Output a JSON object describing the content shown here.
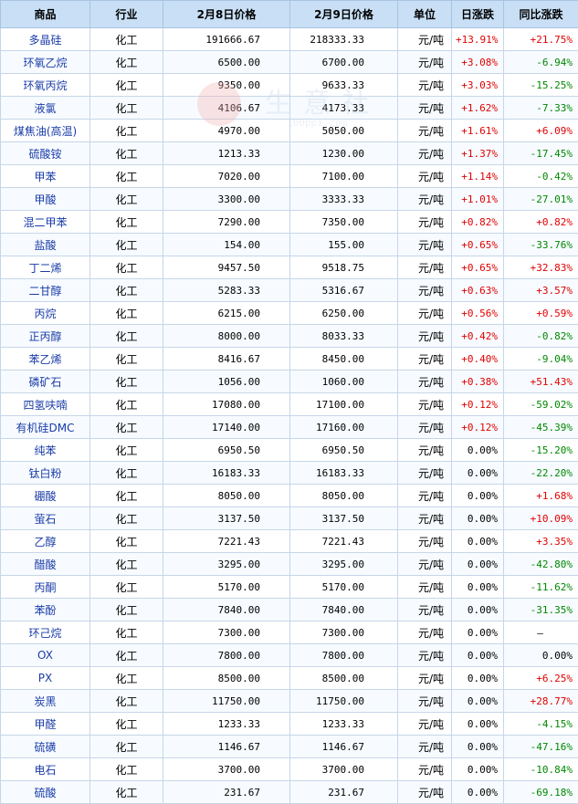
{
  "headers": [
    "商品",
    "行业",
    "2月8日价格",
    "2月9日价格",
    "单位",
    "日涨跌",
    "同比涨跌"
  ],
  "watermark": {
    "text": "生意社",
    "url": "100ppi.com"
  },
  "colors": {
    "up": "#e00000",
    "down": "#008800",
    "header_bg": "#c8dff5",
    "name": "#1a3ca8"
  },
  "rows": [
    {
      "name": "多晶硅",
      "industry": "化工",
      "price_feb8": "191666.67",
      "price_feb9": "218333.33",
      "unit": "元/吨",
      "daily": "+13.91%",
      "yoy": "+21.75%"
    },
    {
      "name": "环氧乙烷",
      "industry": "化工",
      "price_feb8": "6500.00",
      "price_feb9": "6700.00",
      "unit": "元/吨",
      "daily": "+3.08%",
      "yoy": "-6.94%"
    },
    {
      "name": "环氧丙烷",
      "industry": "化工",
      "price_feb8": "9350.00",
      "price_feb9": "9633.33",
      "unit": "元/吨",
      "daily": "+3.03%",
      "yoy": "-15.25%"
    },
    {
      "name": "液氯",
      "industry": "化工",
      "price_feb8": "4106.67",
      "price_feb9": "4173.33",
      "unit": "元/吨",
      "daily": "+1.62%",
      "yoy": "-7.33%"
    },
    {
      "name": "煤焦油(高温)",
      "industry": "化工",
      "price_feb8": "4970.00",
      "price_feb9": "5050.00",
      "unit": "元/吨",
      "daily": "+1.61%",
      "yoy": "+6.09%"
    },
    {
      "name": "硫酸铵",
      "industry": "化工",
      "price_feb8": "1213.33",
      "price_feb9": "1230.00",
      "unit": "元/吨",
      "daily": "+1.37%",
      "yoy": "-17.45%"
    },
    {
      "name": "甲苯",
      "industry": "化工",
      "price_feb8": "7020.00",
      "price_feb9": "7100.00",
      "unit": "元/吨",
      "daily": "+1.14%",
      "yoy": "-0.42%"
    },
    {
      "name": "甲酸",
      "industry": "化工",
      "price_feb8": "3300.00",
      "price_feb9": "3333.33",
      "unit": "元/吨",
      "daily": "+1.01%",
      "yoy": "-27.01%"
    },
    {
      "name": "混二甲苯",
      "industry": "化工",
      "price_feb8": "7290.00",
      "price_feb9": "7350.00",
      "unit": "元/吨",
      "daily": "+0.82%",
      "yoy": "+0.82%"
    },
    {
      "name": "盐酸",
      "industry": "化工",
      "price_feb8": "154.00",
      "price_feb9": "155.00",
      "unit": "元/吨",
      "daily": "+0.65%",
      "yoy": "-33.76%"
    },
    {
      "name": "丁二烯",
      "industry": "化工",
      "price_feb8": "9457.50",
      "price_feb9": "9518.75",
      "unit": "元/吨",
      "daily": "+0.65%",
      "yoy": "+32.83%"
    },
    {
      "name": "二甘醇",
      "industry": "化工",
      "price_feb8": "5283.33",
      "price_feb9": "5316.67",
      "unit": "元/吨",
      "daily": "+0.63%",
      "yoy": "+3.57%"
    },
    {
      "name": "丙烷",
      "industry": "化工",
      "price_feb8": "6215.00",
      "price_feb9": "6250.00",
      "unit": "元/吨",
      "daily": "+0.56%",
      "yoy": "+0.59%"
    },
    {
      "name": "正丙醇",
      "industry": "化工",
      "price_feb8": "8000.00",
      "price_feb9": "8033.33",
      "unit": "元/吨",
      "daily": "+0.42%",
      "yoy": "-0.82%"
    },
    {
      "name": "苯乙烯",
      "industry": "化工",
      "price_feb8": "8416.67",
      "price_feb9": "8450.00",
      "unit": "元/吨",
      "daily": "+0.40%",
      "yoy": "-9.04%"
    },
    {
      "name": "磷矿石",
      "industry": "化工",
      "price_feb8": "1056.00",
      "price_feb9": "1060.00",
      "unit": "元/吨",
      "daily": "+0.38%",
      "yoy": "+51.43%"
    },
    {
      "name": "四氢呋喃",
      "industry": "化工",
      "price_feb8": "17080.00",
      "price_feb9": "17100.00",
      "unit": "元/吨",
      "daily": "+0.12%",
      "yoy": "-59.02%"
    },
    {
      "name": "有机硅DMC",
      "industry": "化工",
      "price_feb8": "17140.00",
      "price_feb9": "17160.00",
      "unit": "元/吨",
      "daily": "+0.12%",
      "yoy": "-45.39%"
    },
    {
      "name": "纯苯",
      "industry": "化工",
      "price_feb8": "6950.50",
      "price_feb9": "6950.50",
      "unit": "元/吨",
      "daily": "0.00%",
      "yoy": "-15.20%"
    },
    {
      "name": "钛白粉",
      "industry": "化工",
      "price_feb8": "16183.33",
      "price_feb9": "16183.33",
      "unit": "元/吨",
      "daily": "0.00%",
      "yoy": "-22.20%"
    },
    {
      "name": "硼酸",
      "industry": "化工",
      "price_feb8": "8050.00",
      "price_feb9": "8050.00",
      "unit": "元/吨",
      "daily": "0.00%",
      "yoy": "+1.68%"
    },
    {
      "name": "萤石",
      "industry": "化工",
      "price_feb8": "3137.50",
      "price_feb9": "3137.50",
      "unit": "元/吨",
      "daily": "0.00%",
      "yoy": "+10.09%"
    },
    {
      "name": "乙醇",
      "industry": "化工",
      "price_feb8": "7221.43",
      "price_feb9": "7221.43",
      "unit": "元/吨",
      "daily": "0.00%",
      "yoy": "+3.35%"
    },
    {
      "name": "醋酸",
      "industry": "化工",
      "price_feb8": "3295.00",
      "price_feb9": "3295.00",
      "unit": "元/吨",
      "daily": "0.00%",
      "yoy": "-42.80%"
    },
    {
      "name": "丙酮",
      "industry": "化工",
      "price_feb8": "5170.00",
      "price_feb9": "5170.00",
      "unit": "元/吨",
      "daily": "0.00%",
      "yoy": "-11.62%"
    },
    {
      "name": "苯酚",
      "industry": "化工",
      "price_feb8": "7840.00",
      "price_feb9": "7840.00",
      "unit": "元/吨",
      "daily": "0.00%",
      "yoy": "-31.35%"
    },
    {
      "name": "环己烷",
      "industry": "化工",
      "price_feb8": "7300.00",
      "price_feb9": "7300.00",
      "unit": "元/吨",
      "daily": "0.00%",
      "yoy": "—"
    },
    {
      "name": "OX",
      "industry": "化工",
      "price_feb8": "7800.00",
      "price_feb9": "7800.00",
      "unit": "元/吨",
      "daily": "0.00%",
      "yoy": "0.00%"
    },
    {
      "name": "PX",
      "industry": "化工",
      "price_feb8": "8500.00",
      "price_feb9": "8500.00",
      "unit": "元/吨",
      "daily": "0.00%",
      "yoy": "+6.25%"
    },
    {
      "name": "炭黑",
      "industry": "化工",
      "price_feb8": "11750.00",
      "price_feb9": "11750.00",
      "unit": "元/吨",
      "daily": "0.00%",
      "yoy": "+28.77%"
    },
    {
      "name": "甲醛",
      "industry": "化工",
      "price_feb8": "1233.33",
      "price_feb9": "1233.33",
      "unit": "元/吨",
      "daily": "0.00%",
      "yoy": "-4.15%"
    },
    {
      "name": "硫磺",
      "industry": "化工",
      "price_feb8": "1146.67",
      "price_feb9": "1146.67",
      "unit": "元/吨",
      "daily": "0.00%",
      "yoy": "-47.16%"
    },
    {
      "name": "电石",
      "industry": "化工",
      "price_feb8": "3700.00",
      "price_feb9": "3700.00",
      "unit": "元/吨",
      "daily": "0.00%",
      "yoy": "-10.84%"
    },
    {
      "name": "硫酸",
      "industry": "化工",
      "price_feb8": "231.67",
      "price_feb9": "231.67",
      "unit": "元/吨",
      "daily": "0.00%",
      "yoy": "-69.18%"
    }
  ]
}
